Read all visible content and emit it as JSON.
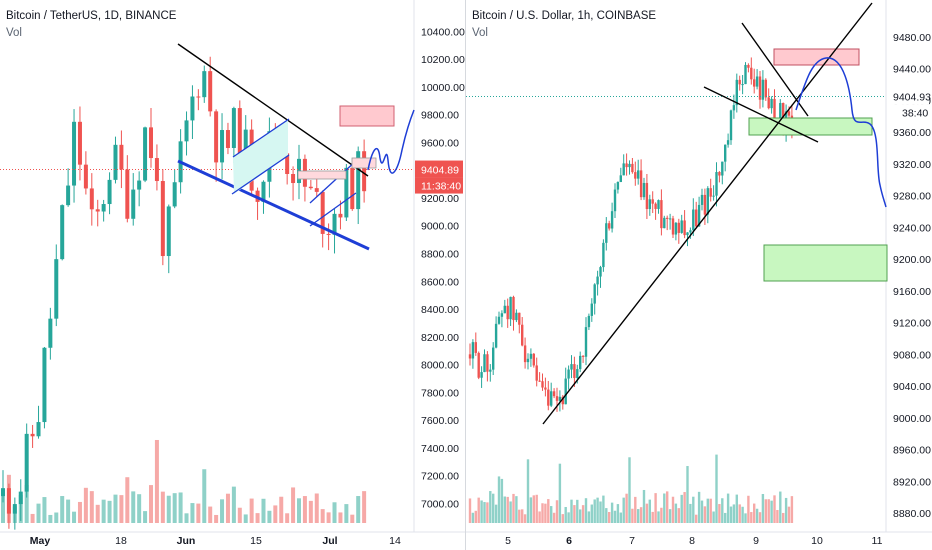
{
  "colors": {
    "up": "#26a69a",
    "down": "#ef5350",
    "up_vol": "#8fd1c8",
    "down_vol": "#f6a9a7",
    "price_tag": "#ef5350",
    "pattern_blue": "#1e3ed6",
    "channel_fill": "#d6f7f2",
    "resistance_fill": "#ffc9cf",
    "support_fill": "#c8f7c0"
  },
  "chart_data": [
    {
      "type": "candlestick",
      "title": "Bitcoin / TetherUS, 1D, BINANCE",
      "volume_label": "Vol",
      "ylim": [
        6880,
        10540
      ],
      "y_ticks": [
        "10400.00",
        "10200.00",
        "10000.00",
        "9800.00",
        "9600.00",
        "9400.00",
        "9200.00",
        "9000.00",
        "8800.00",
        "8600.00",
        "8400.00",
        "8200.00",
        "8000.00",
        "7800.00",
        "7600.00",
        "7400.00",
        "7200.00",
        "7000.00"
      ],
      "x_ticks": [
        "May",
        "18",
        "Jun",
        "15",
        "Jul",
        "14"
      ],
      "last_price": "9404.89",
      "countdown": "11:38:40",
      "annotations": [
        "descending wedge",
        "rising channel",
        "bear flag",
        "projected path",
        "target zone"
      ]
    },
    {
      "type": "candlestick",
      "title": "Bitcoin / U.S. Dollar, 1h, COINBASE",
      "volume_label": "Vol",
      "ylim": [
        8870,
        9500
      ],
      "y_ticks": [
        "9480.00",
        "9440.00",
        "9400.00",
        "9360.00",
        "9320.00",
        "9280.00",
        "9240.00",
        "9200.00",
        "9160.00",
        "9120.00",
        "9080.00",
        "9040.00",
        "9000.00",
        "8960.00",
        "8920.00",
        "8880.00"
      ],
      "x_ticks": [
        "5",
        "6",
        "7",
        "8",
        "9",
        "10",
        "11"
      ],
      "last_price": "9404.93",
      "countdown": "38:40",
      "annotations": [
        "rising trendline",
        "falling wedge",
        "resistance zone",
        "support zone",
        "target zone",
        "projected path"
      ]
    }
  ]
}
